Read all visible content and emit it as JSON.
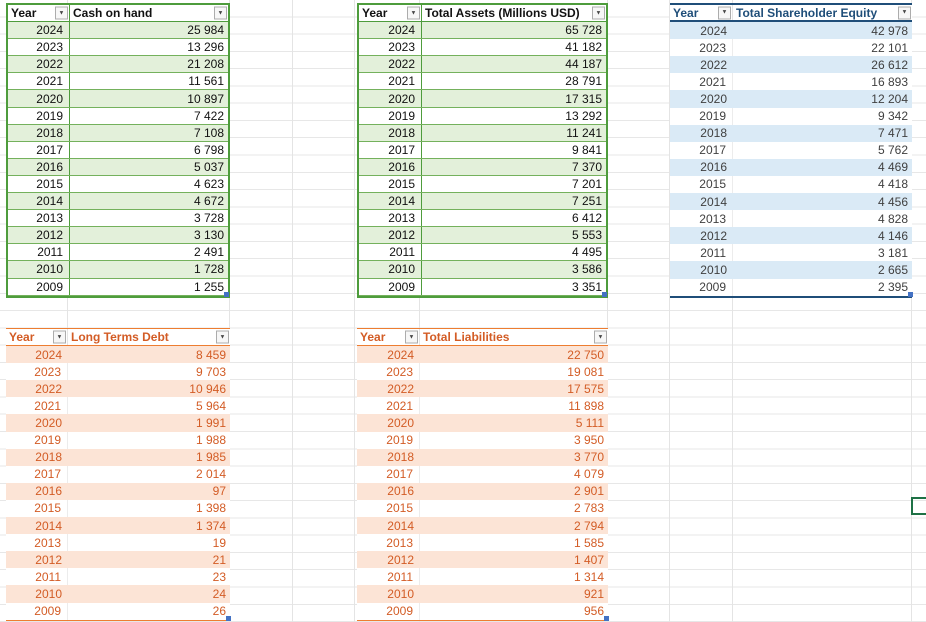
{
  "sheet": {
    "filter_icon": "▼",
    "gridline_color": "#E4E4E4",
    "active_cell_border_color": "#1E7145",
    "resize_handle_color": "#4472C4",
    "years": [
      "2024",
      "2023",
      "2022",
      "2021",
      "2020",
      "2019",
      "2018",
      "2017",
      "2016",
      "2015",
      "2014",
      "2013",
      "2012",
      "2011",
      "2010",
      "2009"
    ]
  },
  "tables": [
    {
      "id": "cash-on-hand",
      "theme": "green",
      "accent": "#4E9C3C",
      "band_fill": "#E3F0DA",
      "text_color": "#111111",
      "year_header": "Year",
      "value_header": "Cash on hand",
      "values": [
        "25 984",
        "13 296",
        "21 208",
        "11 561",
        "10 897",
        "7 422",
        "7 108",
        "6 798",
        "5 037",
        "4 623",
        "4 672",
        "3 728",
        "3 130",
        "2 491",
        "1 728",
        "1 255"
      ]
    },
    {
      "id": "total-assets",
      "theme": "green",
      "accent": "#4E9C3C",
      "band_fill": "#E3F0DA",
      "text_color": "#111111",
      "year_header": "Year",
      "value_header": "Total Assets (Millions USD)",
      "values": [
        "65 728",
        "41 182",
        "44 187",
        "28 791",
        "17 315",
        "13 292",
        "11 241",
        "9 841",
        "7 370",
        "7 201",
        "7 251",
        "6 412",
        "5 553",
        "4 495",
        "3 586",
        "3 351"
      ]
    },
    {
      "id": "total-shareholder-equity",
      "theme": "blue",
      "accent": "#1F4E79",
      "band_fill": "#DAEAF6",
      "text_color": "#404040",
      "year_header": "Year",
      "value_header": "Total Shareholder Equity",
      "values": [
        "42 978",
        "22 101",
        "26 612",
        "16 893",
        "12 204",
        "9 342",
        "7 471",
        "5 762",
        "4 469",
        "4 418",
        "4 456",
        "4 828",
        "4 146",
        "3 181",
        "2 665",
        "2 395"
      ]
    },
    {
      "id": "long-terms-debt",
      "theme": "orange",
      "accent": "#ED7D31",
      "band_fill": "#FCE4D6",
      "text_color": "#D35C25",
      "year_header": "Year",
      "value_header": "Long Terms Debt",
      "values": [
        "8 459",
        "9 703",
        "10 946",
        "5 964",
        "1 991",
        "1 988",
        "1 985",
        "2 014",
        "97",
        "1 398",
        "1 374",
        "19",
        "21",
        "23",
        "24",
        "26"
      ]
    },
    {
      "id": "total-liabilities",
      "theme": "orange",
      "accent": "#ED7D31",
      "band_fill": "#FCE4D6",
      "text_color": "#D35C25",
      "year_header": "Year",
      "value_header": "Total Liabilities",
      "values": [
        "22 750",
        "19 081",
        "17 575",
        "11 898",
        "5 111",
        "3 950",
        "3 770",
        "4 079",
        "2 901",
        "2 783",
        "2 794",
        "1 585",
        "1 407",
        "1 314",
        "921",
        "956"
      ]
    }
  ]
}
